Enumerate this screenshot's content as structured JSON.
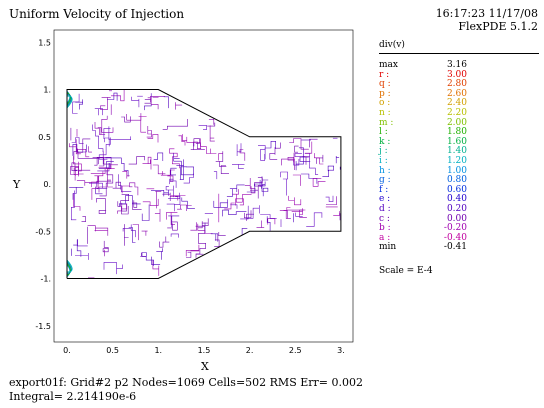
{
  "title": "Uniform Velocity of Injection",
  "timestamp": "16:17:23 11/17/08",
  "software": "FlexPDE 5.1.2",
  "legend": {
    "variable": "div(v)",
    "items": [
      {
        "label": "max",
        "value": "3.16",
        "color": "#000000"
      },
      {
        "label": "r :",
        "value": "3.00",
        "color": "#e00000"
      },
      {
        "label": "q :",
        "value": "2.80",
        "color": "#e04000"
      },
      {
        "label": "p :",
        "value": "2.60",
        "color": "#e07000"
      },
      {
        "label": "o :",
        "value": "2.40",
        "color": "#d0a000"
      },
      {
        "label": "n :",
        "value": "2.20",
        "color": "#b8c000"
      },
      {
        "label": "m :",
        "value": "2.00",
        "color": "#80c000"
      },
      {
        "label": "l :",
        "value": "1.80",
        "color": "#20b000"
      },
      {
        "label": "k :",
        "value": "1.60",
        "color": "#00b040"
      },
      {
        "label": "j :",
        "value": "1.40",
        "color": "#00b090"
      },
      {
        "label": "i :",
        "value": "1.20",
        "color": "#00b0c0"
      },
      {
        "label": "h :",
        "value": "1.00",
        "color": "#0090e0"
      },
      {
        "label": "g :",
        "value": "0.80",
        "color": "#0060e0"
      },
      {
        "label": "f :",
        "value": "0.60",
        "color": "#0030e0"
      },
      {
        "label": "e :",
        "value": "0.40",
        "color": "#2000d0"
      },
      {
        "label": "d :",
        "value": "0.20",
        "color": "#5000c0"
      },
      {
        "label": "c :",
        "value": "0.00",
        "color": "#7000b0"
      },
      {
        "label": "b :",
        "value": "-0.20",
        "color": "#a000b0"
      },
      {
        "label": "a :",
        "value": "-0.40",
        "color": "#c000a0"
      },
      {
        "label": "min",
        "value": "-0.41",
        "color": "#000000"
      }
    ],
    "scale": "Scale = E-4"
  },
  "footer": {
    "line1": "export01f:  Grid#2  p2  Nodes=1069 Cells=502 RMS Err= 0.002",
    "line2": "Integral=  2.214190e-6"
  },
  "chart_data": {
    "type": "contour",
    "xlabel": "X",
    "ylabel": "Y",
    "xlim": [
      -0.1,
      3.0
    ],
    "ylim": [
      -1.6,
      1.6
    ],
    "xticks": [
      "0.",
      "0.5",
      "1.",
      "1.5",
      "2.",
      "2.5",
      "3."
    ],
    "xtick_values": [
      0,
      0.5,
      1,
      1.5,
      2,
      2.5,
      3
    ],
    "yticks": [
      "1.5",
      "1.",
      "0.5",
      "0.",
      "-0.5",
      "-1.",
      "-1.5"
    ],
    "ytick_values": [
      1.5,
      1,
      0.5,
      0,
      -0.5,
      -1,
      -1.5
    ],
    "boundary": [
      [
        0,
        -1
      ],
      [
        0,
        1
      ],
      [
        1,
        1
      ],
      [
        2,
        0.5
      ],
      [
        3,
        0.5
      ],
      [
        3,
        -0.5
      ],
      [
        2,
        -0.5
      ],
      [
        1,
        -1
      ],
      [
        0,
        -1
      ]
    ],
    "hotspots": [
      [
        0.05,
        0.93
      ],
      [
        0.05,
        -0.93
      ]
    ],
    "grid": false
  }
}
